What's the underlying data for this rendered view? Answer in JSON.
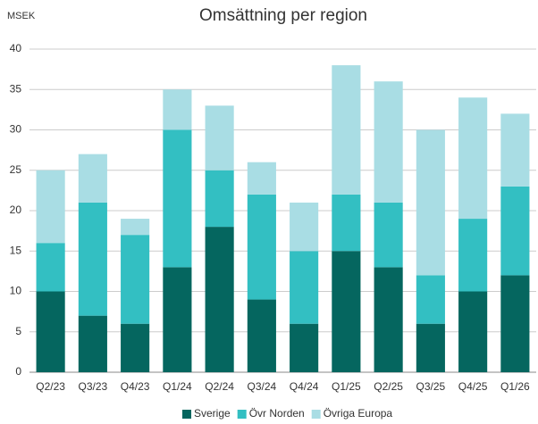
{
  "chart_data": {
    "type": "stacked_bar",
    "title": "Omsättning per region",
    "y_label": "MSEK",
    "categories": [
      "Q2/23",
      "Q3/23",
      "Q4/23",
      "Q1/24",
      "Q2/24",
      "Q3/24",
      "Q4/24",
      "Q1/25",
      "Q2/25",
      "Q3/25",
      "Q4/25",
      "Q1/26"
    ],
    "series": [
      {
        "name": "Sverige",
        "color": "#05665f",
        "values": [
          10,
          7,
          6,
          13,
          18,
          9,
          6,
          15,
          13,
          6,
          10,
          12
        ]
      },
      {
        "name": "Övr Norden",
        "color": "#33bfc2",
        "values": [
          6,
          14,
          11,
          17,
          7,
          13,
          9,
          7,
          8,
          6,
          9,
          11
        ]
      },
      {
        "name": "Övriga Europa",
        "color": "#a9dde4",
        "values": [
          9,
          6,
          2,
          5,
          8,
          4,
          6,
          16,
          15,
          18,
          15,
          9
        ]
      }
    ],
    "ylim": [
      0,
      40
    ],
    "yticks": [
      0,
      5,
      10,
      15,
      20,
      25,
      30,
      35,
      40
    ],
    "grid": true
  }
}
